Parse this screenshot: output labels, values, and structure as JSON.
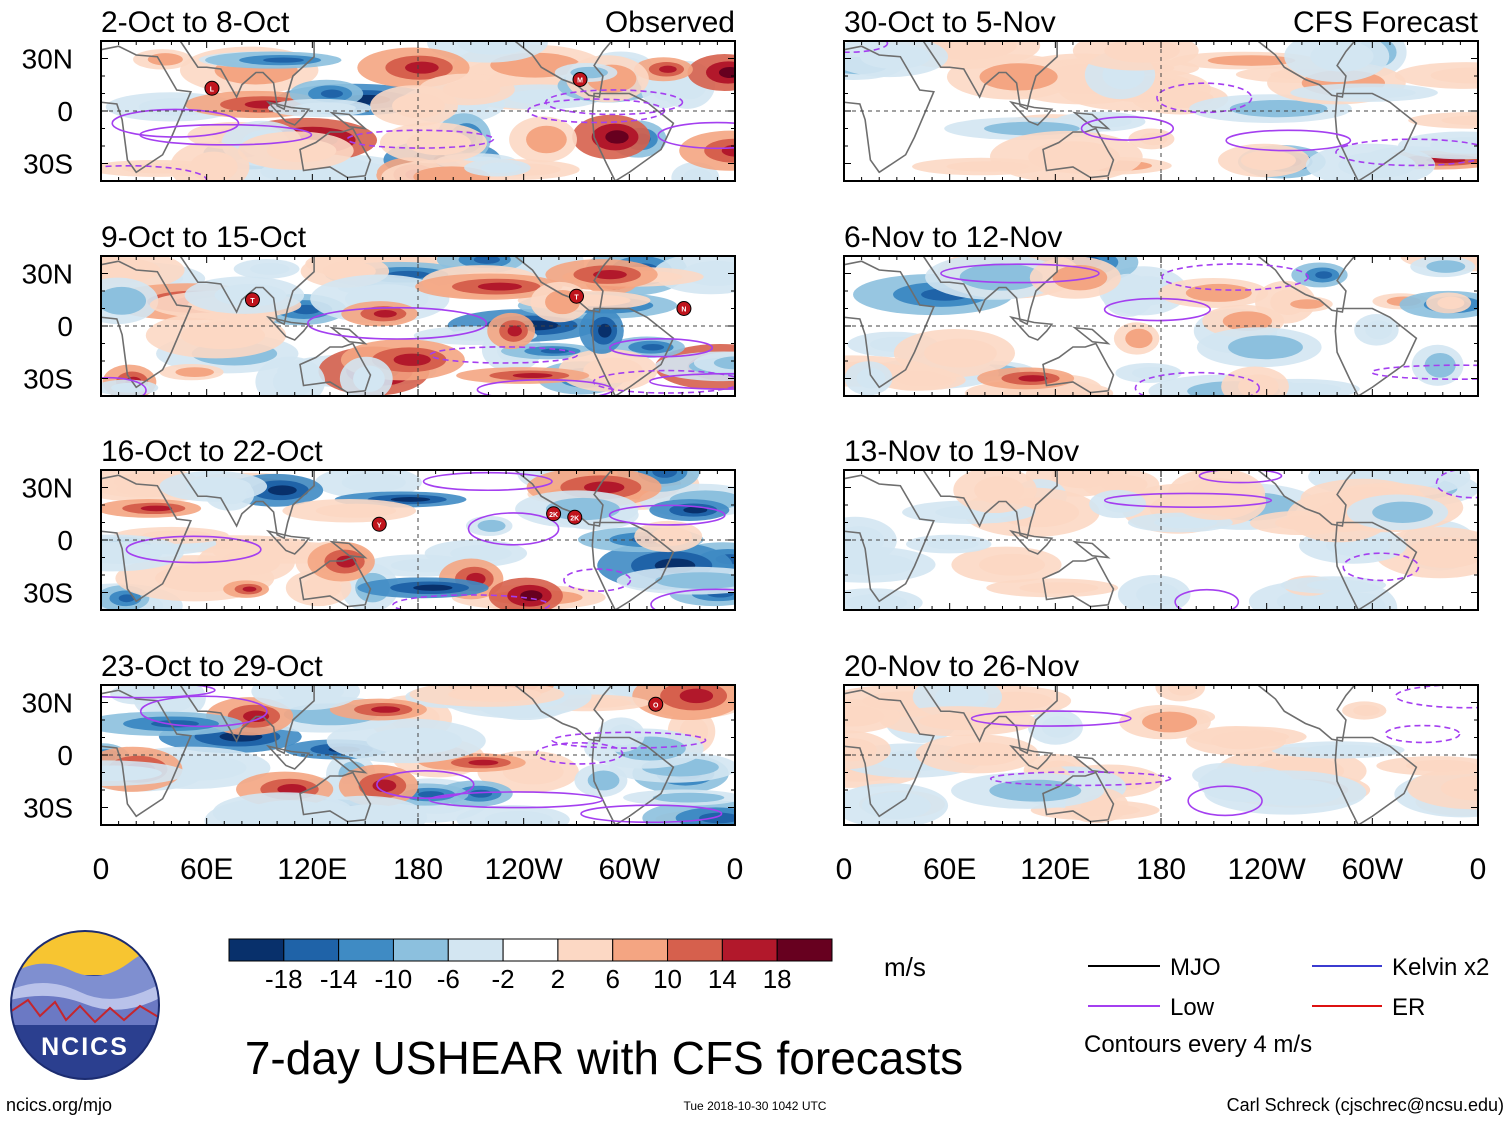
{
  "chart_data": {
    "type": "heatmap",
    "title": "7-day USHEAR with CFS forecasts",
    "variable": "USHEAR",
    "units": "m/s",
    "panel_headers": {
      "observed": "Observed",
      "forecast": "CFS Forecast"
    },
    "x_ticks": [
      "0",
      "60E",
      "120E",
      "180",
      "120W",
      "60W",
      "0"
    ],
    "y_ticks": [
      "30N",
      "0",
      "30S"
    ],
    "lat_range": [
      -40,
      40
    ],
    "lon_range": [
      0,
      360
    ],
    "colorbar": {
      "labels": [
        "-18",
        "-14",
        "-10",
        "-6",
        "-2",
        "2",
        "6",
        "10",
        "14",
        "18"
      ],
      "colors": [
        "#08306b",
        "#1f63a8",
        "#3f8bc4",
        "#8cc0de",
        "#d3e6f2",
        "#ffffff",
        "#fcd8c4",
        "#f4a582",
        "#d6604d",
        "#b2182b",
        "#67001f"
      ]
    },
    "legend": [
      {
        "label": "MJO",
        "color": "#000000",
        "style": "solid"
      },
      {
        "label": "Kelvin x2",
        "color": "#3b3bd0",
        "style": "solid"
      },
      {
        "label": "Low",
        "color": "#a43ff0",
        "style": "solid"
      },
      {
        "label": "ER",
        "color": "#dd1111",
        "style": "solid"
      }
    ],
    "contour_note": "Contours every 4 m/s",
    "panels": [
      {
        "column": "observed",
        "label": "2-Oct to 8-Oct",
        "storms": [
          {
            "letter": "L",
            "lon": 63,
            "lat": 13
          },
          {
            "letter": "M",
            "lon": 272,
            "lat": 18
          }
        ]
      },
      {
        "column": "observed",
        "label": "9-Oct to 15-Oct",
        "storms": [
          {
            "letter": "T",
            "lon": 86,
            "lat": 15
          },
          {
            "letter": "T",
            "lon": 270,
            "lat": 17
          },
          {
            "letter": "N",
            "lon": 331,
            "lat": 10
          }
        ]
      },
      {
        "column": "observed",
        "label": "16-Oct to 22-Oct",
        "storms": [
          {
            "letter": "Y",
            "lon": 158,
            "lat": 9
          },
          {
            "letter": "2K",
            "lon": 257,
            "lat": 15
          },
          {
            "letter": "2K",
            "lon": 269,
            "lat": 13
          }
        ]
      },
      {
        "column": "observed",
        "label": "23-Oct to 29-Oct",
        "storms": [
          {
            "letter": "O",
            "lon": 315,
            "lat": 29
          }
        ]
      },
      {
        "column": "forecast",
        "label": "30-Oct to 5-Nov",
        "storms": []
      },
      {
        "column": "forecast",
        "label": "6-Nov to 12-Nov",
        "storms": []
      },
      {
        "column": "forecast",
        "label": "13-Nov to 19-Nov",
        "storms": []
      },
      {
        "column": "forecast",
        "label": "20-Nov to 26-Nov",
        "storms": []
      }
    ]
  },
  "logo": {
    "text": "NCICS"
  },
  "footer": {
    "url": "ncics.org/mjo",
    "timestamp": "Tue 2018-10-30 1042 UTC",
    "credit": "Carl Schreck (cjschrec@ncsu.edu)"
  }
}
